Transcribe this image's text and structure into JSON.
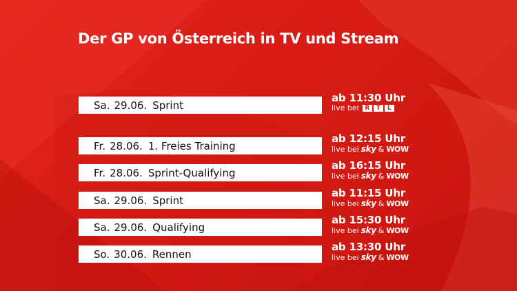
{
  "title": "Der GP von Österreich in TV und Stream",
  "colors": {
    "background": "#d81d16",
    "bar": "#ffffff",
    "text_on_bar": "#111111",
    "text_on_bg": "#ffffff"
  },
  "rtl_letters": [
    "R",
    "T",
    "L"
  ],
  "schedule": [
    {
      "day": "Sa.",
      "date": "29.06.",
      "event": "Sprint",
      "time": "ab 11:30 Uhr",
      "live_prefix": "live bei",
      "broadcaster": "RTL"
    },
    {
      "day": "Fr.",
      "date": "28.06.",
      "event": "1. Freies Training",
      "time": "ab 12:15 Uhr",
      "live_prefix": "live bei",
      "broadcaster": "sky & WOW",
      "b1": "sky",
      "amp": "&",
      "b2": "WOW"
    },
    {
      "day": "Fr.",
      "date": "28.06.",
      "event": "Sprint-Qualifying",
      "time": "ab 16:15 Uhr",
      "live_prefix": "live bei",
      "broadcaster": "sky & WOW",
      "b1": "sky",
      "amp": "&",
      "b2": "WOW"
    },
    {
      "day": "Sa.",
      "date": "29.06.",
      "event": "Sprint",
      "time": "ab 11:15 Uhr",
      "live_prefix": "live bei",
      "broadcaster": "sky & WOW",
      "b1": "sky",
      "amp": "&",
      "b2": "WOW"
    },
    {
      "day": "Sa.",
      "date": "29.06.",
      "event": "Qualifying",
      "time": "ab 15:30 Uhr",
      "live_prefix": "live bei",
      "broadcaster": "sky & WOW",
      "b1": "sky",
      "amp": "&",
      "b2": "WOW"
    },
    {
      "day": "So.",
      "date": "30.06.",
      "event": "Rennen",
      "time": "ab 13:30 Uhr",
      "live_prefix": "live bei",
      "broadcaster": "sky & WOW",
      "b1": "sky",
      "amp": "&",
      "b2": "WOW"
    }
  ]
}
